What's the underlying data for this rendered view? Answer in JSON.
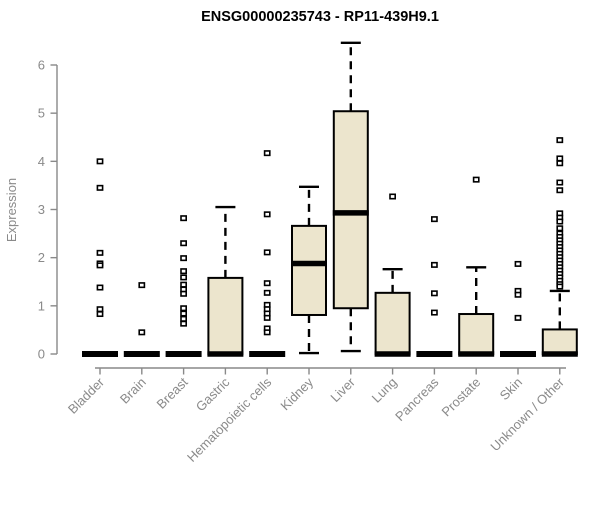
{
  "chart_data": {
    "type": "boxplot",
    "title": "ENSG00000235743 - RP11-439H9.1",
    "ylabel": "Expression",
    "xlabel": "",
    "yticks": [
      0,
      1,
      2,
      3,
      4,
      5,
      6
    ],
    "ylim": [
      0,
      6.6
    ],
    "grid": false,
    "legend": null,
    "categories": [
      "Bladder",
      "Brain",
      "Breast",
      "Gastric",
      "Hematopoietic cells",
      "Kidney",
      "Liver",
      "Lung",
      "Pancreas",
      "Prostate",
      "Skin",
      "Unknown / Other"
    ],
    "series": [
      {
        "category": "Bladder",
        "whisker_low": 0,
        "q1": 0,
        "median": 0,
        "q3": 0,
        "whisker_high": 0,
        "outliers": [
          4.0,
          3.45,
          2.1,
          1.88,
          1.84,
          1.38,
          0.93,
          0.83
        ]
      },
      {
        "category": "Brain",
        "whisker_low": 0,
        "q1": 0,
        "median": 0,
        "q3": 0,
        "whisker_high": 0,
        "outliers": [
          1.43,
          0.45
        ]
      },
      {
        "category": "Breast",
        "whisker_low": 0,
        "q1": 0,
        "median": 0,
        "q3": 0,
        "whisker_high": 0,
        "outliers": [
          2.82,
          2.3,
          1.99,
          1.72,
          1.59,
          1.44,
          1.34,
          1.25,
          0.95,
          0.84,
          0.73,
          0.63
        ]
      },
      {
        "category": "Gastric",
        "whisker_low": 0,
        "q1": 0,
        "median": 0,
        "q3": 1.58,
        "whisker_high": 3.05,
        "outliers": []
      },
      {
        "category": "Hematopoietic cells",
        "whisker_low": 0,
        "q1": 0,
        "median": 0,
        "q3": 0,
        "whisker_high": 0,
        "outliers": [
          4.17,
          2.9,
          2.11,
          1.47,
          1.27,
          1.02,
          0.93,
          0.84,
          0.75,
          0.53,
          0.45
        ]
      },
      {
        "category": "Kidney",
        "whisker_low": 0.02,
        "q1": 0.81,
        "median": 1.88,
        "q3": 2.66,
        "whisker_high": 3.47,
        "outliers": []
      },
      {
        "category": "Liver",
        "whisker_low": 0.06,
        "q1": 0.95,
        "median": 2.93,
        "q3": 5.04,
        "whisker_high": 6.46,
        "outliers": []
      },
      {
        "category": "Lung",
        "whisker_low": 0,
        "q1": 0,
        "median": 0,
        "q3": 1.27,
        "whisker_high": 1.76,
        "outliers": [
          3.27
        ]
      },
      {
        "category": "Pancreas",
        "whisker_low": 0,
        "q1": 0,
        "median": 0,
        "q3": 0,
        "whisker_high": 0,
        "outliers": [
          2.8,
          1.85,
          1.26,
          0.86
        ]
      },
      {
        "category": "Prostate",
        "whisker_low": 0,
        "q1": 0,
        "median": 0,
        "q3": 0.83,
        "whisker_high": 1.8,
        "outliers": [
          3.62
        ]
      },
      {
        "category": "Skin",
        "whisker_low": 0,
        "q1": 0,
        "median": 0,
        "q3": 0,
        "whisker_high": 0,
        "outliers": [
          1.87,
          1.31,
          1.23,
          0.75
        ]
      },
      {
        "category": "Unknown / Other",
        "whisker_low": 0,
        "q1": 0,
        "median": 0,
        "q3": 0.51,
        "whisker_high": 1.31,
        "outliers": [
          4.44,
          4.06,
          3.96,
          3.56,
          3.4,
          2.92,
          2.83,
          2.75,
          2.61,
          2.5,
          2.43,
          2.36,
          2.29,
          2.22,
          2.15,
          2.08,
          2.01,
          1.94,
          1.87,
          1.8,
          1.73,
          1.66,
          1.59,
          1.52,
          1.45,
          1.4
        ]
      }
    ]
  },
  "colors": {
    "box_fill": "#ece5cd",
    "box_stroke": "#000000",
    "median": "#000000",
    "whisker": "#000000",
    "outlier_stroke": "#000000",
    "outlier_fill": "#ffffff",
    "axis": "#898989",
    "tick_label": "#8a8a8a",
    "title": "#000000",
    "background": "#ffffff"
  }
}
